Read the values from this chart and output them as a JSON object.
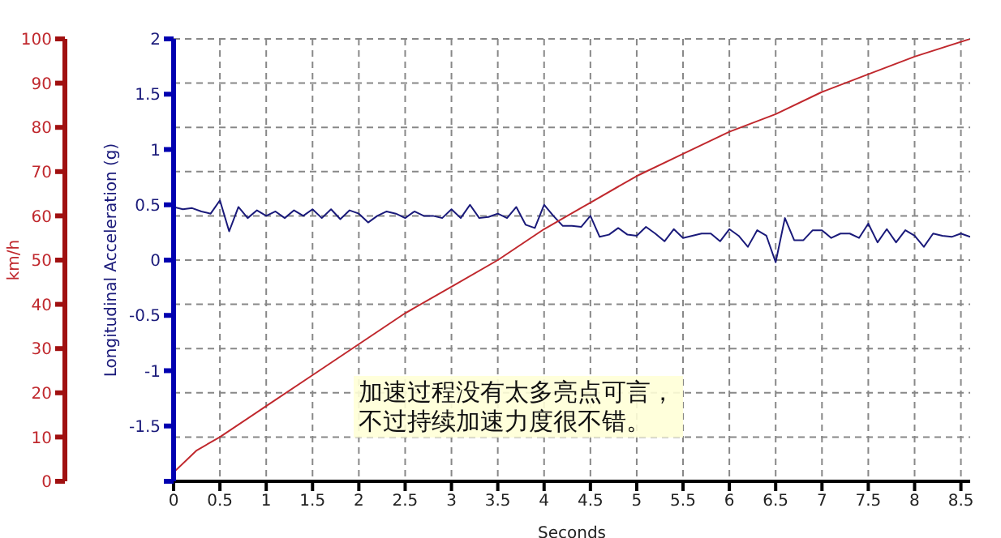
{
  "chart_data": {
    "type": "line",
    "xlabel": "Seconds",
    "ylabel": "Longitudinal Acceleration (g)",
    "y2label": "km/h",
    "xlim": [
      0,
      8.6
    ],
    "xticks": [
      0,
      0.5,
      1,
      1.5,
      2,
      2.5,
      3,
      3.5,
      4,
      4.5,
      5,
      5.5,
      6,
      6.5,
      7,
      7.5,
      8,
      8.5
    ],
    "ylim": [
      -2,
      2
    ],
    "yticks": [
      {
        "value": -2,
        "label": null
      },
      -1.5,
      -1,
      -0.5,
      0,
      0.5,
      1,
      1.5,
      2
    ],
    "y2lim": [
      0,
      100
    ],
    "y2ticks": [
      0,
      10,
      20,
      30,
      40,
      50,
      60,
      70,
      80,
      90,
      100
    ],
    "grid": true,
    "marker": "none",
    "line_style": "solid",
    "annotations": [
      "加速过程没有太多亮点可言，不过持续加速力度很不错。"
    ],
    "series": [
      {
        "color": "#1a1a7a",
        "x": [
          0,
          0.1,
          0.2,
          0.3,
          0.4,
          0.5,
          0.6,
          0.7,
          0.8,
          0.9,
          1,
          1.1,
          1.2,
          1.3,
          1.4,
          1.5,
          1.6,
          1.7,
          1.8,
          1.9,
          2,
          2.1,
          2.2,
          2.3,
          2.4,
          2.5,
          2.6,
          2.7,
          2.8,
          2.9,
          3,
          3.1,
          3.2,
          3.3,
          3.4,
          3.5,
          3.6,
          3.7,
          3.8,
          3.9,
          4,
          4.1,
          4.2,
          4.3,
          4.4,
          4.5,
          4.6,
          4.7,
          4.8,
          4.9,
          5,
          5.1,
          5.2,
          5.3,
          5.4,
          5.5,
          5.6,
          5.7,
          5.8,
          5.9,
          6,
          6.1,
          6.2,
          6.3,
          6.4,
          6.5,
          6.6,
          6.7,
          6.8,
          6.9,
          7,
          7.1,
          7.2,
          7.3,
          7.4,
          7.5,
          7.6,
          7.7,
          7.8,
          7.9,
          8,
          8.1,
          8.2,
          8.3,
          8.4,
          8.5,
          8.6
        ],
        "values": [
          0.48,
          0.46,
          0.47,
          0.44,
          0.42,
          0.54,
          0.26,
          0.48,
          0.38,
          0.45,
          0.4,
          0.44,
          0.38,
          0.45,
          0.4,
          0.46,
          0.38,
          0.46,
          0.37,
          0.45,
          0.42,
          0.34,
          0.4,
          0.44,
          0.42,
          0.38,
          0.44,
          0.4,
          0.4,
          0.38,
          0.46,
          0.38,
          0.5,
          0.38,
          0.39,
          0.42,
          0.38,
          0.48,
          0.32,
          0.29,
          0.5,
          0.4,
          0.31,
          0.31,
          0.3,
          0.4,
          0.21,
          0.23,
          0.29,
          0.23,
          0.22,
          0.3,
          0.24,
          0.17,
          0.28,
          0.2,
          0.22,
          0.24,
          0.24,
          0.17,
          0.28,
          0.22,
          0.12,
          0.27,
          0.22,
          -0.02,
          0.38,
          0.18,
          0.18,
          0.27,
          0.27,
          0.2,
          0.24,
          0.24,
          0.2,
          0.33,
          0.16,
          0.28,
          0.16,
          0.27,
          0.22,
          0.12,
          0.24,
          0.22,
          0.21,
          0.24,
          0.21
        ]
      },
      {
        "color": "#c0282d",
        "axis": "y2",
        "x": [
          0,
          0.25,
          0.5,
          1,
          1.5,
          2,
          2.5,
          3,
          3.5,
          4,
          4.5,
          5,
          5.5,
          6,
          6.5,
          7,
          7.5,
          8,
          8.6
        ],
        "values": [
          2,
          7,
          10,
          17,
          24,
          31,
          38,
          44,
          50,
          57,
          63,
          69,
          74,
          79,
          83,
          88,
          92,
          96,
          100
        ]
      }
    ]
  }
}
